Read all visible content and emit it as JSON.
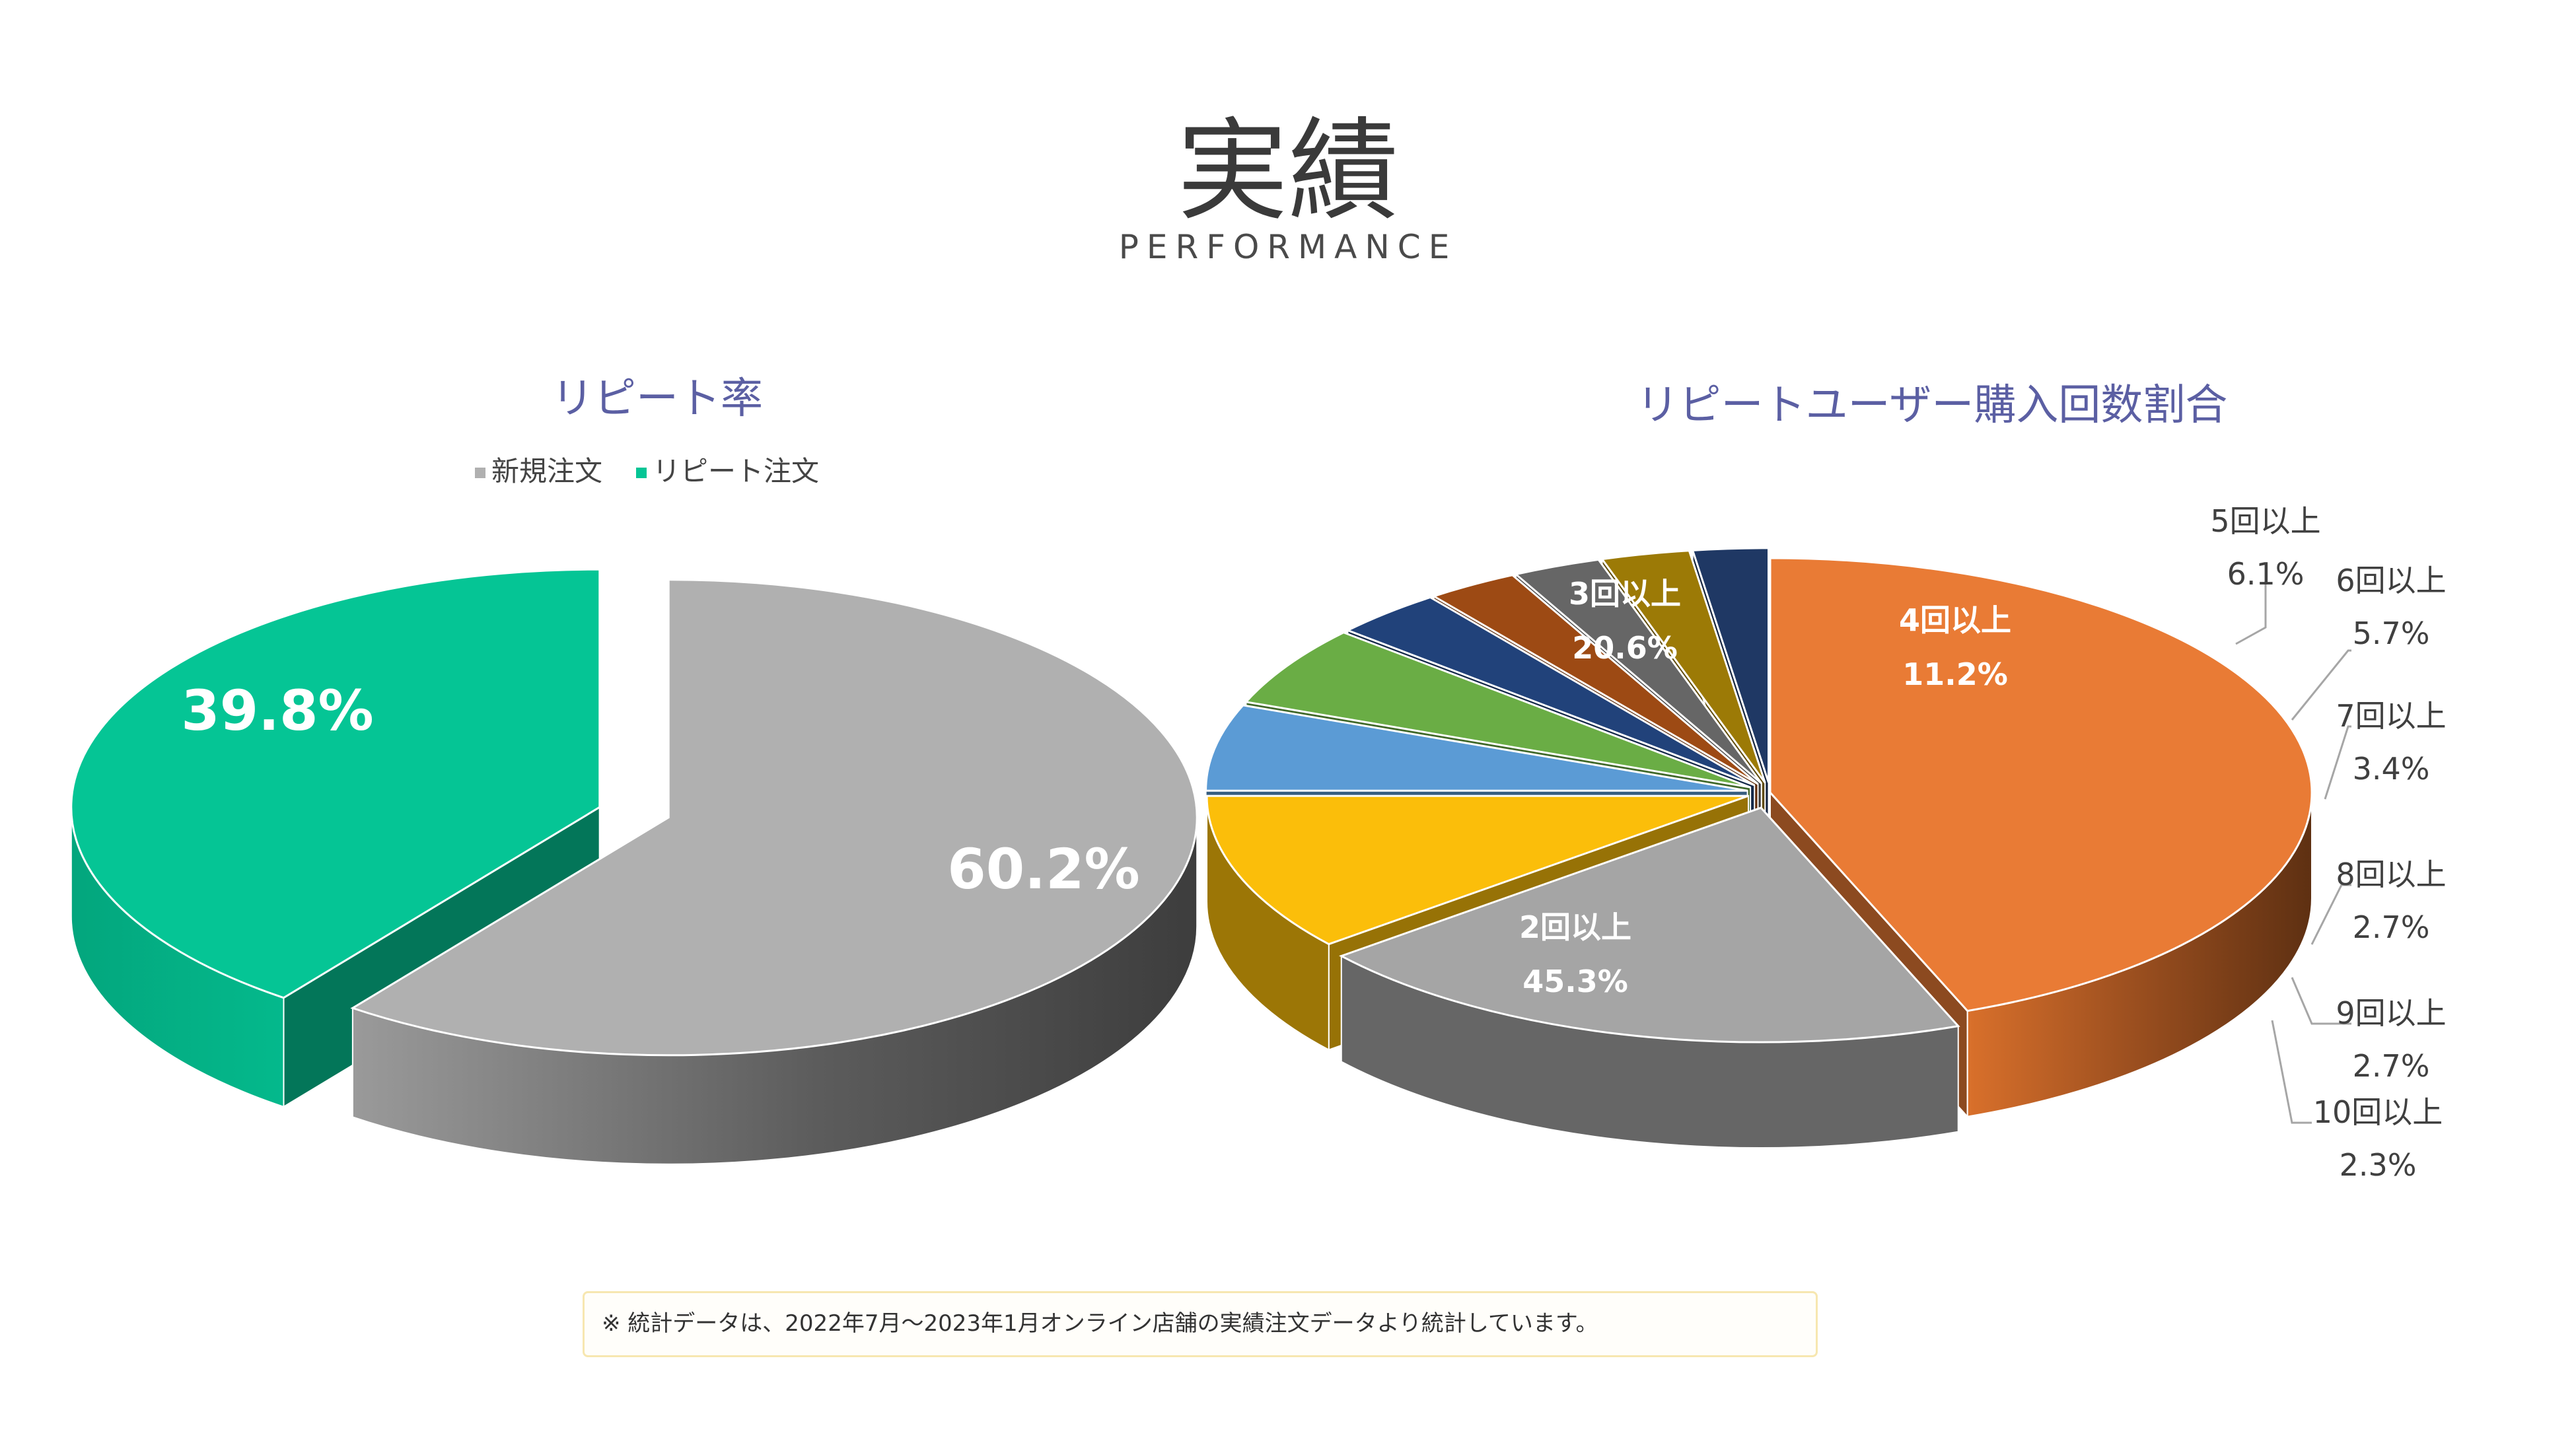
{
  "title": "実績",
  "subtitle": "PERFORMANCE",
  "chart_data": [
    {
      "type": "pie",
      "title": "リピート率",
      "legend_position": "top",
      "slices": [
        {
          "label": "新規注文",
          "value": 60.2,
          "display": "60.2%",
          "color": "#b0b0b0"
        },
        {
          "label": "リピート注文",
          "value": 39.8,
          "display": "39.8%",
          "color": "#05c595"
        }
      ]
    },
    {
      "type": "pie",
      "title": "リピートユーザー購入回数割合",
      "slices": [
        {
          "label": "2回以上",
          "value": 45.3,
          "display": "45.3%",
          "color": "#e97b35"
        },
        {
          "label": "3回以上",
          "value": 20.6,
          "display": "20.6%",
          "color": "#a5a5a5"
        },
        {
          "label": "4回以上",
          "value": 11.2,
          "display": "11.2%",
          "color": "#fbbe0a"
        },
        {
          "label": "5回以上",
          "value": 6.1,
          "display": "6.1%",
          "color": "#5b9bd5"
        },
        {
          "label": "6回以上",
          "value": 5.7,
          "display": "5.7%",
          "color": "#6aad45"
        },
        {
          "label": "7回以上",
          "value": 3.4,
          "display": "3.4%",
          "color": "#21427a"
        },
        {
          "label": "",
          "value": 2.8,
          "display": "",
          "color": "#9d4a14"
        },
        {
          "label": "8回以上",
          "value": 2.7,
          "display": "2.7%",
          "color": "#666666"
        },
        {
          "label": "9回以上",
          "value": 2.7,
          "display": "2.7%",
          "color": "#9c7a06"
        },
        {
          "label": "10回以上",
          "value": 2.3,
          "display": "2.3%",
          "color": "#1f3864"
        }
      ]
    }
  ],
  "footnote": "※ 統計データは、2022年7月〜2023年1月オンライン店舗の実績注文データより統計しています。"
}
